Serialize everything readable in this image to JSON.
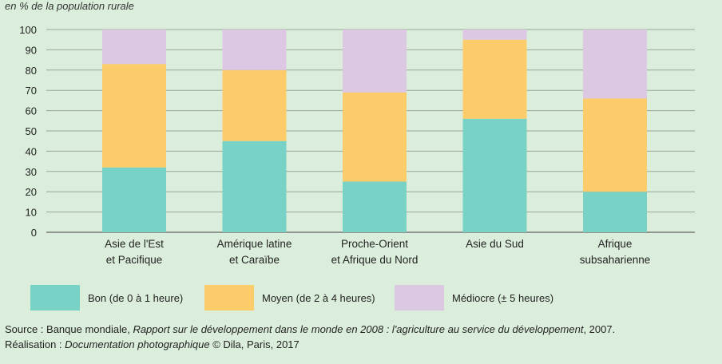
{
  "chart_data": {
    "type": "bar",
    "stacked": true,
    "unit_label": "en % de la population rurale",
    "categories": [
      [
        "Asie de l'Est",
        "et Pacifique"
      ],
      [
        "Amérique latine",
        "et Caraïbe"
      ],
      [
        "Proche-Orient",
        "et Afrique du Nord"
      ],
      [
        "Asie du Sud"
      ],
      [
        "Afrique",
        "subsaharienne"
      ]
    ],
    "series": [
      {
        "name": "Bon (de 0 à 1 heure)",
        "color": "#78d2c5",
        "values": [
          32,
          45,
          25,
          56,
          20
        ]
      },
      {
        "name": "Moyen (de 2 à 4 heures)",
        "color": "#fdcc6a",
        "values": [
          51,
          35,
          44,
          39,
          46
        ]
      },
      {
        "name": "Médiocre (± 5 heures)",
        "color": "#dcc8e3",
        "values": [
          17,
          20,
          31,
          5,
          34
        ]
      }
    ],
    "ylim": [
      0,
      100
    ],
    "yticks": [
      0,
      10,
      20,
      30,
      40,
      50,
      60,
      70,
      80,
      90,
      100
    ],
    "grid": true
  },
  "source": {
    "line1_a": "Source : Banque mondiale, ",
    "line1_b": "Rapport sur le développement dans le monde en 2008 : l'agriculture au service du développement",
    "line1_c": ", 2007.",
    "line2_a": "Réalisation : ",
    "line2_b": "Documentation photographique",
    "line2_c": "  © Dila, Paris, 2017"
  }
}
